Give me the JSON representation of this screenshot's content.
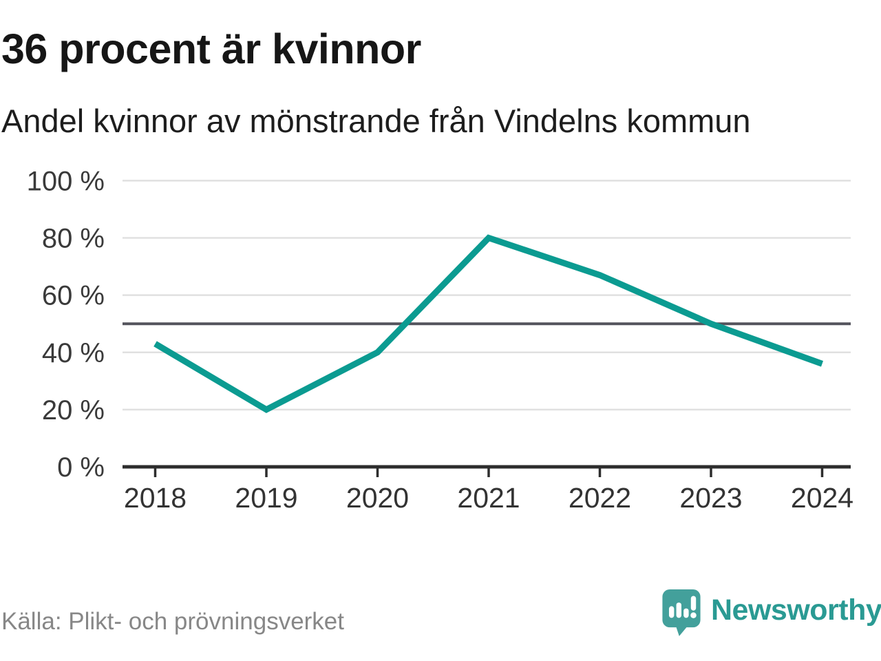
{
  "header": {
    "title": "36 procent är kvinnor",
    "subtitle": "Andel kvinnor av mönstrande från Vindelns kommun"
  },
  "footer": {
    "source": "Källa: Plikt- och prövningsverket",
    "brand": "Newsworthy"
  },
  "chart_data": {
    "type": "line",
    "title": "36 procent är kvinnor",
    "subtitle": "Andel kvinnor av mönstrande från Vindelns kommun",
    "categories": [
      "2018",
      "2019",
      "2020",
      "2021",
      "2022",
      "2023",
      "2024"
    ],
    "series": [
      {
        "name": "Andel kvinnor av mönstrande",
        "values": [
          43,
          20,
          40,
          80,
          67,
          50,
          36
        ]
      }
    ],
    "unit": "%",
    "ylim": [
      0,
      100
    ],
    "yticks": [
      0,
      20,
      40,
      60,
      80,
      100
    ],
    "ytick_suffix": " %",
    "reference_line": 50,
    "grid": true,
    "legend": "none",
    "colors": {
      "line": "#0b9b91",
      "gridline": "#e0e0e0",
      "reference_line": "#53535c",
      "axis": "#2d2d2d",
      "tick_label": "#3a3a3a",
      "accent": "#2a9a93"
    }
  }
}
